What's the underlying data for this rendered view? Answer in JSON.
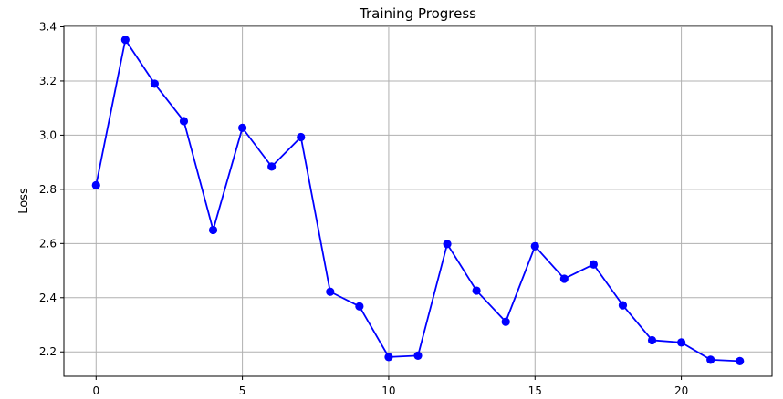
{
  "chart_data": {
    "type": "line",
    "title": "Training Progress",
    "xlabel": "",
    "ylabel": "Loss",
    "x": [
      0,
      1,
      2,
      3,
      4,
      5,
      6,
      7,
      8,
      9,
      10,
      11,
      12,
      13,
      14,
      15,
      16,
      17,
      18,
      19,
      20,
      21,
      22
    ],
    "series": [
      {
        "values": [
          2.815,
          3.352,
          3.19,
          3.052,
          2.65,
          3.027,
          2.884,
          2.993,
          2.422,
          2.368,
          2.181,
          2.186,
          2.598,
          2.426,
          2.311,
          2.59,
          2.47,
          2.523,
          2.372,
          2.243,
          2.235,
          2.171,
          2.166
        ],
        "color": "#0000ff",
        "marker": "circle"
      }
    ],
    "xlim": [
      -1.1,
      23.1
    ],
    "ylim": [
      2.11,
      3.405
    ],
    "xticks": [
      0,
      5,
      10,
      15,
      20
    ],
    "yticks": [
      2.2,
      2.4,
      2.6,
      2.8,
      3.0,
      3.2,
      3.4
    ],
    "xtick_labels": [
      "0",
      "5",
      "10",
      "15",
      "20"
    ],
    "ytick_labels": [
      "2.2",
      "2.4",
      "2.6",
      "2.8",
      "3.0",
      "3.2",
      "3.4"
    ],
    "grid": true,
    "legend": "none"
  }
}
